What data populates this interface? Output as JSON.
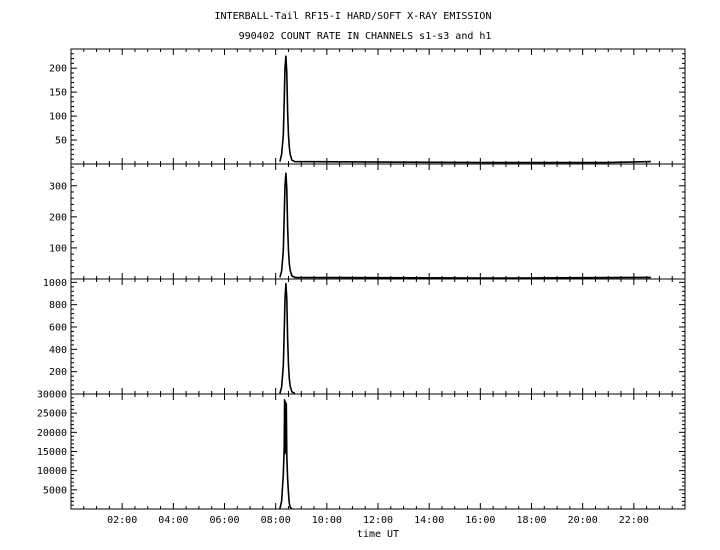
{
  "chart_data": {
    "type": "line",
    "title": "INTERBALL-Tail RF15-I HARD/SOFT X-RAY EMISSION",
    "subtitle": "990402  COUNT RATE IN CHANNELS s1-s3 and h1",
    "xlabel": "time UT",
    "x_ticks": [
      "02:00",
      "04:00",
      "06:00",
      "08:00",
      "10:00",
      "12:00",
      "14:00",
      "16:00",
      "18:00",
      "20:00",
      "22:00"
    ],
    "xlim": [
      "00:00",
      "24:00"
    ],
    "panels": [
      {
        "ylim": [
          0,
          240
        ],
        "y_ticks": [
          50,
          100,
          150,
          200
        ],
        "x": [
          "08:10",
          "08:14",
          "08:18",
          "08:20",
          "08:22",
          "08:24",
          "08:26",
          "08:28",
          "08:30",
          "08:32",
          "08:34",
          "08:38",
          "08:45",
          "16:30",
          "20:50",
          "22:40"
        ],
        "values": [
          5,
          20,
          60,
          130,
          200,
          225,
          190,
          110,
          60,
          35,
          20,
          8,
          5,
          3,
          3,
          5
        ]
      },
      {
        "ylim": [
          0,
          370
        ],
        "y_ticks": [
          100,
          200,
          300
        ],
        "x": [
          "08:10",
          "08:14",
          "08:18",
          "08:20",
          "08:22",
          "08:24",
          "08:26",
          "08:28",
          "08:30",
          "08:32",
          "08:34",
          "08:38",
          "08:45",
          "16:30",
          "22:40"
        ],
        "values": [
          5,
          25,
          90,
          200,
          300,
          340,
          290,
          170,
          90,
          50,
          28,
          10,
          5,
          3,
          5
        ]
      },
      {
        "ylim": [
          0,
          1030
        ],
        "y_ticks": [
          200,
          400,
          600,
          800,
          1000
        ],
        "x": [
          "08:10",
          "08:14",
          "08:18",
          "08:20",
          "08:22",
          "08:24",
          "08:26",
          "08:28",
          "08:30",
          "08:32",
          "08:34",
          "08:38",
          "08:45"
        ],
        "values": [
          5,
          60,
          250,
          550,
          850,
          990,
          850,
          500,
          260,
          140,
          70,
          20,
          5
        ]
      },
      {
        "ylim": [
          0,
          30000
        ],
        "y_ticks": [
          5000,
          10000,
          15000,
          20000,
          25000,
          30000
        ],
        "x": [
          "08:10",
          "08:14",
          "08:18",
          "08:20",
          "08:21",
          "08:22",
          "08:23",
          "08:24",
          "08:25",
          "08:26",
          "08:28",
          "08:30",
          "08:32",
          "08:34",
          "08:38"
        ],
        "values": [
          100,
          2000,
          9000,
          16000,
          28500,
          14500,
          28000,
          15000,
          27500,
          14000,
          8000,
          4000,
          1500,
          500,
          50
        ]
      }
    ]
  }
}
